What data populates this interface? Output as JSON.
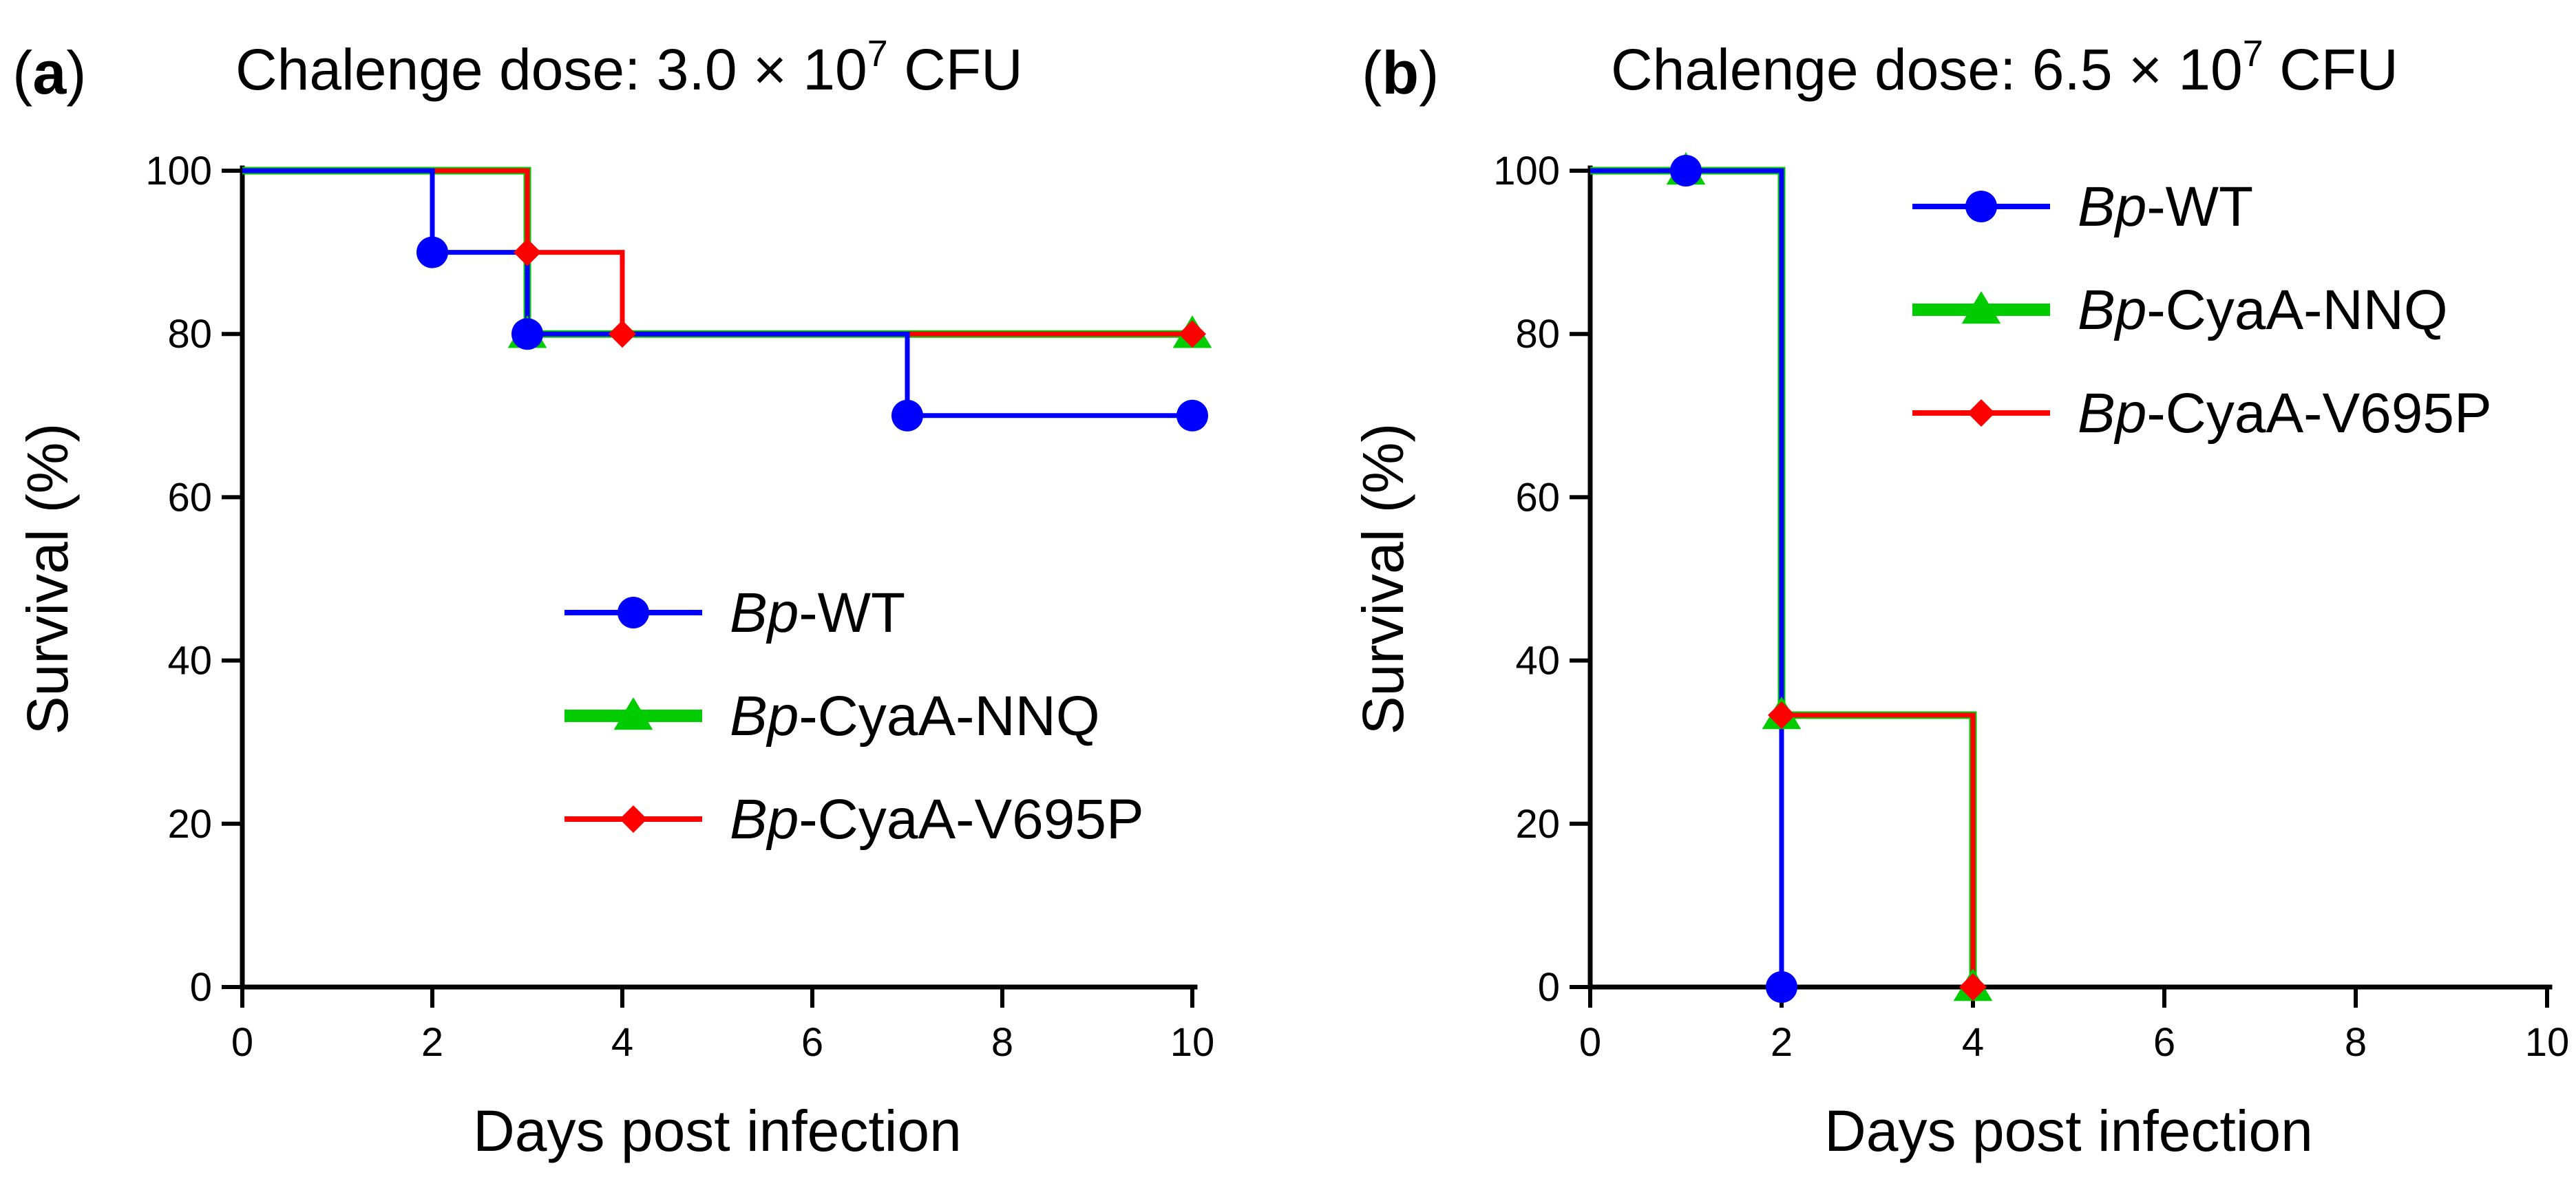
{
  "chart_data": [
    {
      "type": "line",
      "panel_label": "(a)",
      "panel_letter": "a",
      "title": "Chalenge dose: 3.0 × 10",
      "title_exponent": "7",
      "title_unit": "CFU",
      "xlabel": "Days post infection",
      "ylabel": "Survival (%)",
      "xlim": [
        0,
        10
      ],
      "ylim": [
        0,
        100
      ],
      "xticks": [
        0,
        2,
        4,
        6,
        8,
        10
      ],
      "yticks": [
        0,
        20,
        40,
        60,
        80,
        100
      ],
      "legend_position": "center",
      "series": [
        {
          "name": "Bp-WT",
          "name_italic": "Bp",
          "name_rest": "-WT",
          "color": "#0000FF",
          "marker": "circle",
          "steps": [
            [
              0,
              100
            ],
            [
              2,
              90
            ],
            [
              3,
              80
            ],
            [
              7,
              70
            ],
            [
              10,
              70
            ]
          ],
          "markers": [
            [
              2,
              90
            ],
            [
              3,
              80
            ],
            [
              7,
              70
            ],
            [
              10,
              70
            ]
          ]
        },
        {
          "name": "Bp-CyaA-NNQ",
          "name_italic": "Bp",
          "name_rest": "-CyaA-NNQ",
          "color": "#00CC00",
          "marker": "triangle",
          "steps": [
            [
              0,
              100
            ],
            [
              3,
              80
            ],
            [
              10,
              80
            ]
          ],
          "markers": [
            [
              3,
              80
            ],
            [
              10,
              80
            ]
          ]
        },
        {
          "name": "Bp-CyaA-V695P",
          "name_italic": "Bp",
          "name_rest": "-CyaA-V695P",
          "color": "#FF0000",
          "marker": "diamond",
          "steps": [
            [
              0,
              100
            ],
            [
              3,
              90
            ],
            [
              4,
              80
            ],
            [
              10,
              80
            ]
          ],
          "markers": [
            [
              3,
              90
            ],
            [
              4,
              80
            ],
            [
              10,
              80
            ]
          ]
        }
      ]
    },
    {
      "type": "line",
      "panel_label": "(b)",
      "panel_letter": "b",
      "title": "Chalenge dose: 6.5 × 10",
      "title_exponent": "7",
      "title_unit": "CFU",
      "xlabel": "Days post infection",
      "ylabel": "Survival (%)",
      "xlim": [
        0,
        10
      ],
      "ylim": [
        0,
        100
      ],
      "xticks": [
        0,
        2,
        4,
        6,
        8,
        10
      ],
      "yticks": [
        0,
        20,
        40,
        60,
        80,
        100
      ],
      "legend_position": "top-right",
      "series": [
        {
          "name": "Bp-WT",
          "name_italic": "Bp",
          "name_rest": "-WT",
          "color": "#0000FF",
          "marker": "circle",
          "steps": [
            [
              0,
              100
            ],
            [
              2,
              0
            ]
          ],
          "markers": [
            [
              1,
              100
            ],
            [
              2,
              0
            ]
          ]
        },
        {
          "name": "Bp-CyaA-NNQ",
          "name_italic": "Bp",
          "name_rest": "-CyaA-NNQ",
          "color": "#00CC00",
          "marker": "triangle",
          "steps": [
            [
              0,
              100
            ],
            [
              2,
              33.3
            ],
            [
              4,
              0
            ]
          ],
          "markers": [
            [
              1,
              100
            ],
            [
              2,
              33.3
            ],
            [
              4,
              0
            ]
          ]
        },
        {
          "name": "Bp-CyaA-V695P",
          "name_italic": "Bp",
          "name_rest": "-CyaA-V695P",
          "color": "#FF0000",
          "marker": "diamond",
          "steps": [
            [
              0,
              100
            ],
            [
              2,
              33.3
            ],
            [
              4,
              0
            ]
          ],
          "markers": [
            [
              2,
              33.3
            ],
            [
              4,
              0
            ]
          ]
        }
      ]
    }
  ]
}
